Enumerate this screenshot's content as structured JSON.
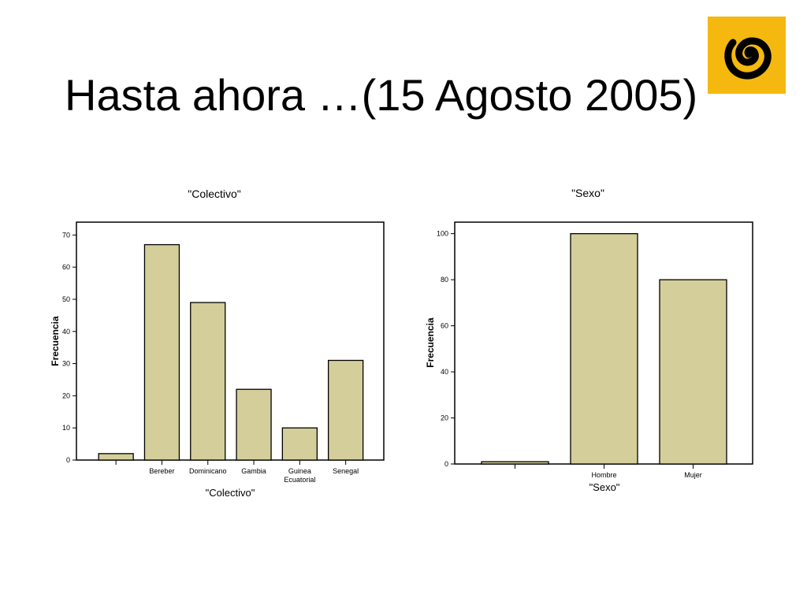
{
  "slide": {
    "title": "Hasta ahora …(15 Agosto 2005)",
    "logo_icon": "spiral-logo-icon",
    "logo_bg": "#f4b80f",
    "logo_fg": "#000000"
  },
  "chart_data": [
    {
      "type": "bar",
      "title": "\"Colectivo\"",
      "xlabel": "\"Colectivo\"",
      "ylabel": "Frecuencia",
      "categories": [
        "",
        "Bereber",
        "Dominicano",
        "Gambia",
        "Guinea Ecuatorial",
        "Senegal"
      ],
      "values": [
        2,
        67,
        49,
        22,
        10,
        31
      ],
      "ylim": [
        0,
        74
      ],
      "yticks": [
        0,
        10,
        20,
        30,
        40,
        50,
        60,
        70
      ],
      "bar_color": "#d4cf9a",
      "grid": false
    },
    {
      "type": "bar",
      "title": "\"Sexo\"",
      "xlabel": "\"Sexo\"",
      "ylabel": "Frecuencia",
      "categories": [
        "",
        "Hombre",
        "Mujer"
      ],
      "values": [
        1,
        100,
        80
      ],
      "ylim": [
        0,
        105
      ],
      "yticks": [
        0,
        20,
        40,
        60,
        80,
        100
      ],
      "bar_color": "#d4cf9a",
      "grid": false
    }
  ]
}
